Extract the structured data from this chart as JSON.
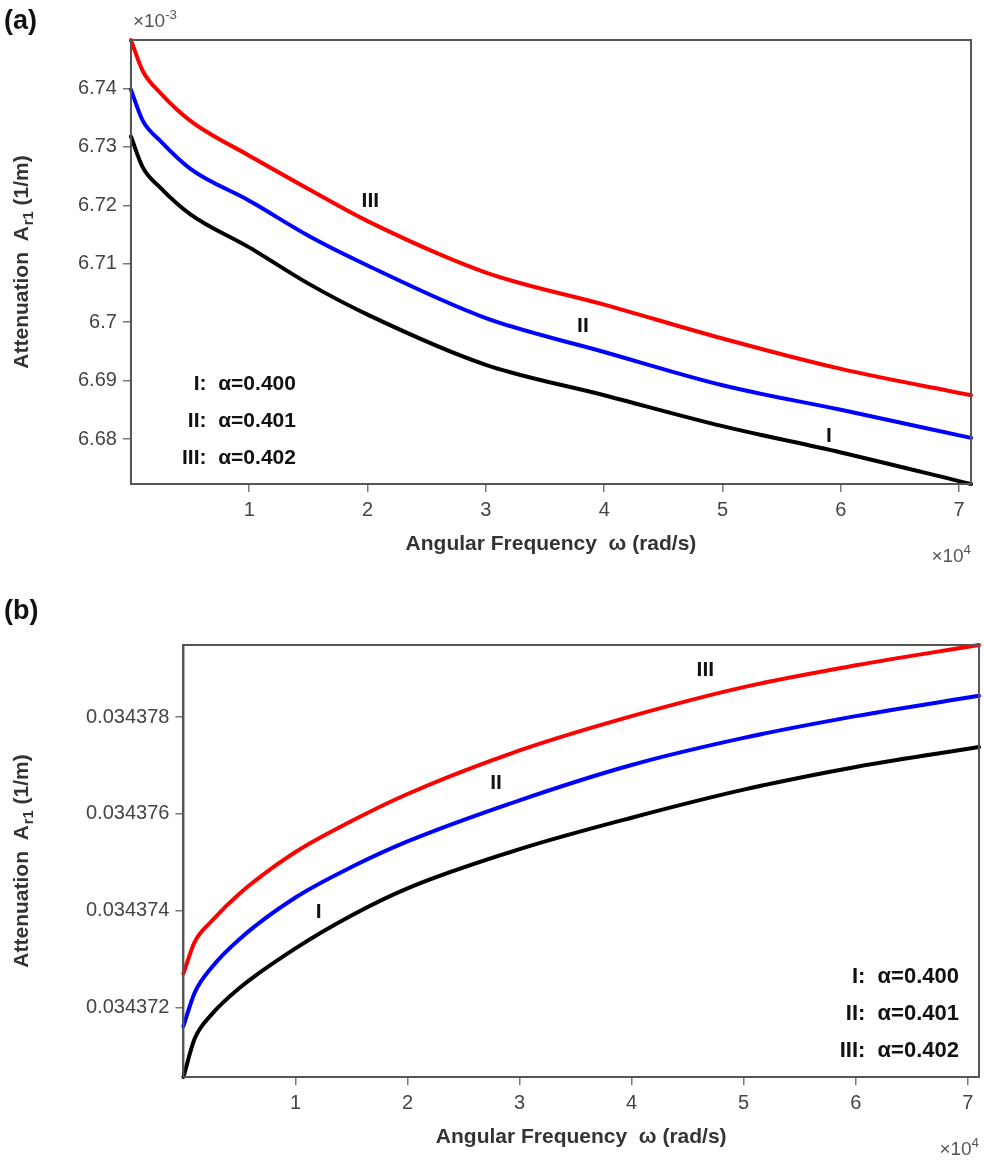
{
  "chart_data": [
    {
      "type": "line",
      "title": "(a)",
      "xlabel": "Angular Frequency  ω (rad/s)",
      "ylabel": "Attenuation  A$_{r1}$ (1/m)",
      "x": [
        0,
        0.1,
        0.25,
        0.5,
        1,
        1.5,
        2,
        3,
        4,
        5,
        6,
        7.1
      ],
      "series": [
        {
          "color": "#000000",
          "values": [
            6.7318,
            6.7265,
            6.723,
            6.7185,
            6.7128,
            6.7066,
            6.7013,
            6.6927,
            6.6875,
            6.6822,
            6.6777,
            6.6723
          ]
        },
        {
          "color": "#0000ff",
          "values": [
            6.7398,
            6.7345,
            6.731,
            6.7263,
            6.7208,
            6.7148,
            6.7097,
            6.7007,
            6.6949,
            6.6892,
            6.685,
            6.6802
          ]
        },
        {
          "color": "#ff0000",
          "values": [
            6.7483,
            6.743,
            6.7392,
            6.7345,
            6.7285,
            6.7228,
            6.7173,
            6.7085,
            6.703,
            6.6972,
            6.692,
            6.6875
          ]
        }
      ],
      "xlim": [
        0,
        7.1
      ],
      "xticks": [
        1,
        2,
        3,
        4,
        5,
        6,
        7
      ],
      "ylim": [
        6.6723,
        6.7483
      ],
      "yticks": [
        6.68,
        6.69,
        6.7,
        6.71,
        6.72,
        6.73,
        6.74
      ],
      "grid": false,
      "legend": false,
      "annotations": [
        "×10$^{-3}$",
        "×10$^{4}$",
        "I:  α=0.400",
        "II:  α=0.401",
        "III:  α=0.402",
        "III",
        "II",
        "I"
      ]
    },
    {
      "type": "line",
      "title": "(b)",
      "xlabel": "Angular Frequency  ω (rad/s)",
      "ylabel": "Attenuation  A$_{r1}$ (1/m)",
      "x": [
        0,
        0.1,
        0.25,
        0.5,
        1,
        1.5,
        2,
        3,
        4,
        5,
        6,
        7.1
      ],
      "series": [
        {
          "color": "#000000",
          "values": [
            0.03437056,
            0.03437135,
            0.03437185,
            0.0343724,
            0.03437322,
            0.0343739,
            0.03437446,
            0.03437527,
            0.03437592,
            0.0343765,
            0.03437697,
            0.03437738
          ]
        },
        {
          "color": "#0000ff",
          "values": [
            0.03437161,
            0.0343723,
            0.03437282,
            0.03437341,
            0.03437427,
            0.0343749,
            0.03437543,
            0.03437628,
            0.03437701,
            0.03437757,
            0.03437802,
            0.03437844
          ]
        },
        {
          "color": "#ff0000",
          "values": [
            0.0343727,
            0.03437335,
            0.03437378,
            0.03437435,
            0.03437521,
            0.03437585,
            0.03437641,
            0.03437731,
            0.03437802,
            0.03437862,
            0.03437907,
            0.03437949
          ]
        }
      ],
      "xlim": [
        0,
        7.1
      ],
      "xticks": [
        1,
        2,
        3,
        4,
        5,
        6,
        7
      ],
      "ylim": [
        0.03437056,
        0.03437949
      ],
      "yticks": [
        0.034372,
        0.034374,
        0.034376,
        0.034378
      ],
      "grid": false,
      "legend": false,
      "annotations": [
        "×10$^{4}$",
        "I:  α=0.400",
        "II:  α=0.401",
        "III:  α=0.402",
        "I",
        "II",
        "III"
      ]
    }
  ]
}
